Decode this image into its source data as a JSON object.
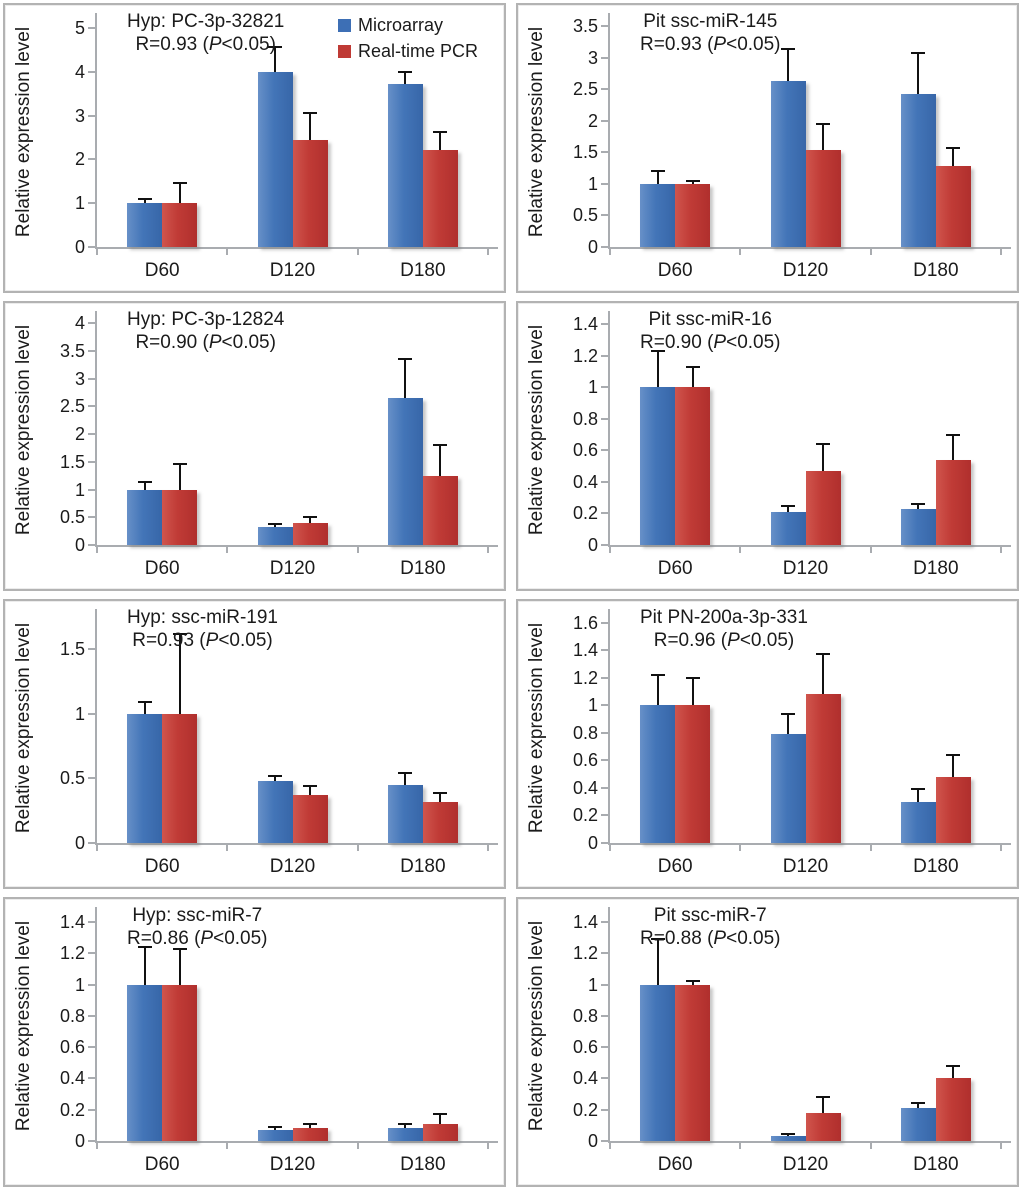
{
  "figure": {
    "ylabel": "Relative expression level",
    "categories": [
      "D60",
      "D120",
      "D180"
    ],
    "legend": {
      "items": [
        {
          "label": "Microarray",
          "color": "#3d6fb5"
        },
        {
          "label": "Real-time PCR",
          "color": "#bf3a35"
        }
      ]
    },
    "colors": {
      "microarray_blue": "#3d6fb5",
      "realtime_pcr_red": "#bf3a35",
      "axis_gray": "#a9acb0",
      "text": "#1b1b1b",
      "panel_border": "#b3b3b3",
      "error_bar": "#111111"
    }
  },
  "chart_data": [
    {
      "type": "bar",
      "title": "Hyp: PC-3p-32821",
      "r_label": "R=0.93 (P<0.05)",
      "ylabel": "Relative expression level",
      "categories": [
        "D60",
        "D120",
        "D180"
      ],
      "series": [
        {
          "name": "Microarray",
          "values": [
            1.0,
            4.0,
            3.72
          ],
          "errors": [
            0.1,
            0.57,
            0.28
          ]
        },
        {
          "name": "Real-time PCR",
          "values": [
            1.0,
            2.45,
            2.22
          ],
          "errors": [
            0.45,
            0.6,
            0.4
          ]
        }
      ],
      "yticks": [
        "0",
        "1",
        "2",
        "3",
        "4",
        "5"
      ],
      "ylim": [
        0,
        5.25
      ],
      "legend_visible": true,
      "grid": false
    },
    {
      "type": "bar",
      "title": "Pit ssc-miR-145",
      "r_label": "R=0.93 (P<0.05)",
      "ylabel": "Relative expression level",
      "categories": [
        "D60",
        "D120",
        "D180"
      ],
      "series": [
        {
          "name": "Microarray",
          "values": [
            1.0,
            2.64,
            2.43
          ],
          "errors": [
            0.2,
            0.5,
            0.65
          ]
        },
        {
          "name": "Real-time PCR",
          "values": [
            1.0,
            1.54,
            1.29
          ],
          "errors": [
            0.04,
            0.41,
            0.28
          ]
        }
      ],
      "yticks": [
        "0",
        "0.5",
        "1",
        "1.5",
        "2",
        "2.5",
        "3",
        "3.5"
      ],
      "ylim": [
        0,
        3.65
      ],
      "legend_visible": false,
      "grid": false
    },
    {
      "type": "bar",
      "title": "Hyp: PC-3p-12824",
      "r_label": "R=0.90 (P<0.05)",
      "ylabel": "Relative expression level",
      "categories": [
        "D60",
        "D120",
        "D180"
      ],
      "series": [
        {
          "name": "Microarray",
          "values": [
            1.0,
            0.33,
            2.65
          ],
          "errors": [
            0.13,
            0.04,
            0.7
          ]
        },
        {
          "name": "Real-time PCR",
          "values": [
            1.0,
            0.4,
            1.25
          ],
          "errors": [
            0.46,
            0.1,
            0.55
          ]
        }
      ],
      "yticks": [
        "0",
        "0.5",
        "1",
        "1.5",
        "2",
        "2.5",
        "3",
        "3.5",
        "4"
      ],
      "ylim": [
        0,
        4.15
      ],
      "legend_visible": false,
      "grid": false
    },
    {
      "type": "bar",
      "title": "Pit ssc-miR-16",
      "r_label": "R=0.90 (P<0.05)",
      "ylabel": "Relative expression level",
      "categories": [
        "D60",
        "D120",
        "D180"
      ],
      "series": [
        {
          "name": "Microarray",
          "values": [
            1.0,
            0.21,
            0.23
          ],
          "errors": [
            0.23,
            0.04,
            0.03
          ]
        },
        {
          "name": "Real-time PCR",
          "values": [
            1.0,
            0.47,
            0.54
          ],
          "errors": [
            0.13,
            0.17,
            0.16
          ]
        }
      ],
      "yticks": [
        "0",
        "0.2",
        "0.4",
        "0.6",
        "0.8",
        "1",
        "1.2",
        "1.4"
      ],
      "ylim": [
        0,
        1.46
      ],
      "legend_visible": false,
      "grid": false
    },
    {
      "type": "bar",
      "title": "Hyp: ssc-miR-191",
      "r_label": "R=0.93 (P<0.05)",
      "ylabel": "Relative expression level",
      "categories": [
        "D60",
        "D120",
        "D180"
      ],
      "series": [
        {
          "name": "Microarray",
          "values": [
            1.0,
            0.48,
            0.45
          ],
          "errors": [
            0.09,
            0.04,
            0.09
          ]
        },
        {
          "name": "Real-time PCR",
          "values": [
            1.0,
            0.37,
            0.32
          ],
          "errors": [
            0.62,
            0.07,
            0.07
          ]
        }
      ],
      "yticks": [
        "0",
        "0.5",
        "1",
        "1.5"
      ],
      "ylim": [
        0,
        1.78
      ],
      "legend_visible": false,
      "grid": false
    },
    {
      "type": "bar",
      "title": "Pit PN-200a-3p-331",
      "r_label": "R=0.96 (P<0.05)",
      "ylabel": "Relative expression level",
      "categories": [
        "D60",
        "D120",
        "D180"
      ],
      "series": [
        {
          "name": "Microarray",
          "values": [
            1.0,
            0.79,
            0.3
          ],
          "errors": [
            0.22,
            0.15,
            0.09
          ]
        },
        {
          "name": "Real-time PCR",
          "values": [
            1.0,
            1.08,
            0.48
          ],
          "errors": [
            0.2,
            0.29,
            0.16
          ]
        }
      ],
      "yticks": [
        "0",
        "0.2",
        "0.4",
        "0.6",
        "0.8",
        "1",
        "1.2",
        "1.4",
        "1.6"
      ],
      "ylim": [
        0,
        1.67
      ],
      "legend_visible": false,
      "grid": false
    },
    {
      "type": "bar",
      "title": "Hyp: ssc-miR-7",
      "r_label": "R=0.86 (P<0.05)",
      "ylabel": "Relative expression level",
      "categories": [
        "D60",
        "D120",
        "D180"
      ],
      "series": [
        {
          "name": "Microarray",
          "values": [
            1.0,
            0.07,
            0.08
          ],
          "errors": [
            0.24,
            0.02,
            0.03
          ]
        },
        {
          "name": "Real-time PCR",
          "values": [
            1.0,
            0.08,
            0.11
          ],
          "errors": [
            0.23,
            0.03,
            0.06
          ]
        }
      ],
      "yticks": [
        "0",
        "0.2",
        "0.4",
        "0.6",
        "0.8",
        "1",
        "1.2",
        "1.4"
      ],
      "ylim": [
        0,
        1.47
      ],
      "legend_visible": false,
      "grid": false
    },
    {
      "type": "bar",
      "title": "Pit ssc-miR-7",
      "r_label": "R=0.88 (P<0.05)",
      "ylabel": "Relative expression level",
      "categories": [
        "D60",
        "D120",
        "D180"
      ],
      "series": [
        {
          "name": "Microarray",
          "values": [
            1.0,
            0.03,
            0.21
          ],
          "errors": [
            0.29,
            0.015,
            0.03
          ]
        },
        {
          "name": "Real-time PCR",
          "values": [
            1.0,
            0.18,
            0.4
          ],
          "errors": [
            0.02,
            0.1,
            0.08
          ]
        }
      ],
      "yticks": [
        "0",
        "0.2",
        "0.4",
        "0.6",
        "0.8",
        "1",
        "1.2",
        "1.4"
      ],
      "ylim": [
        0,
        1.47
      ],
      "legend_visible": false,
      "grid": false
    }
  ]
}
